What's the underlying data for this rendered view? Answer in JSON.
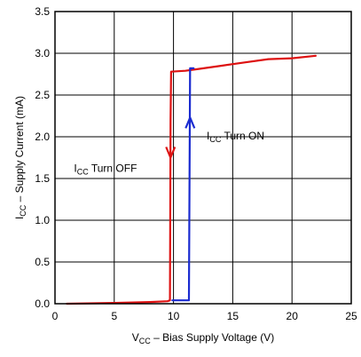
{
  "chart_data": {
    "type": "line",
    "xlabel": {
      "main": "V",
      "sub": "CC",
      "rest": " – Bias Supply Voltage (V)"
    },
    "ylabel": {
      "main": "I",
      "sub": "CC",
      "rest": " – Supply Current (mA)"
    },
    "xlim": [
      0,
      25
    ],
    "ylim": [
      0,
      3.5
    ],
    "xticks": [
      0,
      5,
      10,
      15,
      20,
      25
    ],
    "yticks": [
      0.0,
      0.5,
      1.0,
      1.5,
      2.0,
      2.5,
      3.0,
      3.5
    ],
    "xtick_labels": [
      "0",
      "5",
      "10",
      "15",
      "20",
      "25"
    ],
    "ytick_labels": [
      "0.0",
      "0.5",
      "1.0",
      "1.5",
      "2.0",
      "2.5",
      "3.0",
      "3.5"
    ],
    "grid": true,
    "series": [
      {
        "color": "#dd1111",
        "x": [
          1.0,
          5.0,
          8.0,
          9.5,
          9.7,
          9.75,
          9.8,
          11.0,
          12.0,
          14.0,
          16.0,
          18.0,
          20.0,
          22.0
        ],
        "y": [
          0.0,
          0.01,
          0.02,
          0.03,
          0.04,
          2.2,
          2.78,
          2.79,
          2.81,
          2.85,
          2.89,
          2.93,
          2.94,
          2.97
        ]
      },
      {
        "color": "#1a2bd0",
        "x": [
          9.9,
          10.5,
          11.3,
          11.4,
          11.5,
          11.7
        ],
        "y": [
          0.04,
          0.04,
          0.04,
          2.82,
          2.82,
          2.82
        ]
      }
    ],
    "annotations": [
      {
        "id": "turn-off",
        "main": "I",
        "sub": "CC",
        "rest": " Turn OFF",
        "x": 1.6,
        "y": 1.58
      },
      {
        "id": "turn-on",
        "main": "I",
        "sub": "CC",
        "rest": " Turn ON",
        "x": 12.8,
        "y": 1.97
      }
    ]
  }
}
